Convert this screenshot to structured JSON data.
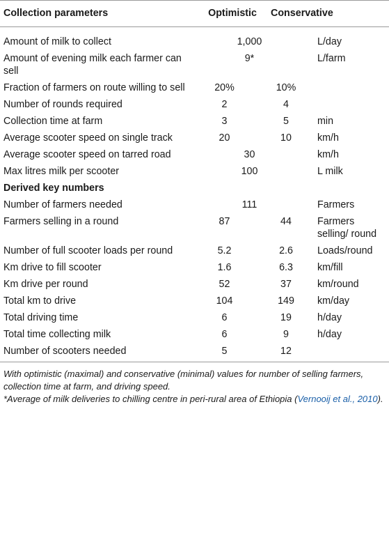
{
  "table": {
    "headers": [
      "Collection parameters",
      "Optimistic",
      "Conservative",
      ""
    ],
    "rows": [
      {
        "label": "Amount of milk to collect",
        "optimistic": "",
        "conservative": "",
        "merged": "1,000",
        "unit": "L/day"
      },
      {
        "label": "Amount of evening milk each farmer can sell",
        "optimistic": "",
        "conservative": "",
        "merged": "9*",
        "unit": "L/farm"
      },
      {
        "label": "Fraction of farmers on route willing to sell",
        "optimistic": "20%",
        "conservative": "10%",
        "merged": "",
        "unit": ""
      },
      {
        "label": "Number of rounds required",
        "optimistic": "2",
        "conservative": "4",
        "merged": "",
        "unit": ""
      },
      {
        "label": "Collection time at farm",
        "optimistic": "3",
        "conservative": "5",
        "merged": "",
        "unit": "min"
      },
      {
        "label": "Average scooter speed on single track",
        "optimistic": "20",
        "conservative": "10",
        "merged": "",
        "unit": "km/h"
      },
      {
        "label": "Average scooter speed on tarred road",
        "optimistic": "",
        "conservative": "",
        "merged": "30",
        "unit": "km/h"
      },
      {
        "label": "Max litres milk per scooter",
        "optimistic": "",
        "conservative": "",
        "merged": "100",
        "unit": "L milk"
      }
    ],
    "section2_title": "Derived key numbers",
    "rows2": [
      {
        "label": "Number of farmers needed",
        "optimistic": "",
        "conservative": "",
        "merged": "111",
        "unit": "Farmers"
      },
      {
        "label": "Farmers selling in a round",
        "optimistic": "87",
        "conservative": "44",
        "merged": "",
        "unit": "Farmers selling/ round"
      },
      {
        "label": "Number of full scooter loads per round",
        "optimistic": "5.2",
        "conservative": "2.6",
        "merged": "",
        "unit": "Loads/round"
      },
      {
        "label": "Km drive to fill scooter",
        "optimistic": "1.6",
        "conservative": "6.3",
        "merged": "",
        "unit": "km/fill"
      },
      {
        "label": "Km drive per round",
        "optimistic": "52",
        "conservative": "37",
        "merged": "",
        "unit": "km/round"
      },
      {
        "label": "Total km to drive",
        "optimistic": "104",
        "conservative": "149",
        "merged": "",
        "unit": "km/day"
      },
      {
        "label": "Total driving time",
        "optimistic": "6",
        "conservative": "19",
        "merged": "",
        "unit": "h/day"
      },
      {
        "label": "Total time collecting milk",
        "optimistic": "6",
        "conservative": "9",
        "merged": "",
        "unit": "h/day"
      },
      {
        "label": "Number of scooters needed",
        "optimistic": "5",
        "conservative": "12",
        "merged": "",
        "unit": ""
      }
    ]
  },
  "footnotes": {
    "note1": "With optimistic (maximal) and conservative (minimal) values for number of selling farmers, collection time at farm, and driving speed.",
    "note2_prefix": "*Average of milk deliveries to chilling centre in peri-rural area of Ethiopia (",
    "note2_ref": "Vernooij et al., 2010",
    "note2_suffix": ")."
  },
  "colors": {
    "text": "#1a1a1a",
    "rule": "#9a9a9a",
    "link": "#1a5fa8"
  }
}
